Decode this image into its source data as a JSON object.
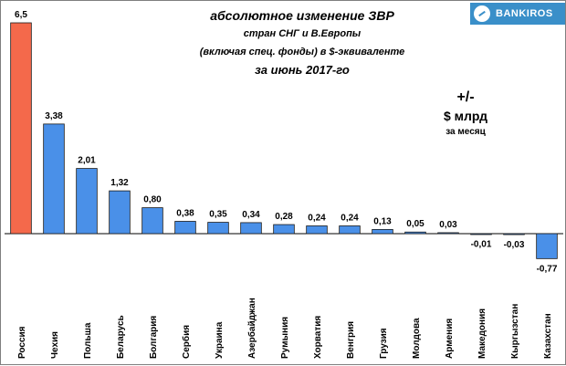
{
  "logo": {
    "text": "BANKIROS",
    "icon": "bankiros-logo-icon",
    "color": "#3a8fc9"
  },
  "unit": {
    "line1": "+/-",
    "line2": "$ млрд",
    "line3": "за месяц"
  },
  "chart_data": {
    "type": "bar",
    "title": "абсолютное изменение ЗВР",
    "subtitle_lines": [
      "стран СНГ и В.Европы",
      "(включая спец. фонды) в $-эквиваленте",
      "за июнь 2017-го"
    ],
    "xlabel": "",
    "ylabel": "",
    "ylim": [
      -1.1,
      6.5
    ],
    "grid": false,
    "legend": "none",
    "categories": [
      "Россия",
      "Чехия",
      "Польша",
      "Беларусь",
      "Болгария",
      "Сербия",
      "Украина",
      "Азербайджан",
      "Румыния",
      "Хорватия",
      "Венгрия",
      "Грузия",
      "Молдова",
      "Армения",
      "Македония",
      "Кыргызстан",
      "Казахстан"
    ],
    "values": [
      6.5,
      3.38,
      2.01,
      1.32,
      0.8,
      0.38,
      0.35,
      0.34,
      0.28,
      0.24,
      0.24,
      0.13,
      0.05,
      0.03,
      -0.01,
      -0.03,
      -0.77
    ],
    "labels": [
      "6,5",
      "3,38",
      "2,01",
      "1,32",
      "0,80",
      "0,38",
      "0,35",
      "0,34",
      "0,28",
      "0,24",
      "0,24",
      "0,13",
      "0,05",
      "0,03",
      "-0,01",
      "-0,03",
      "-0,77"
    ],
    "colors": {
      "highlight": "#f4694b",
      "bar": "#4a90e8",
      "stroke": "#1a1a1a"
    },
    "highlight_index": 0
  }
}
